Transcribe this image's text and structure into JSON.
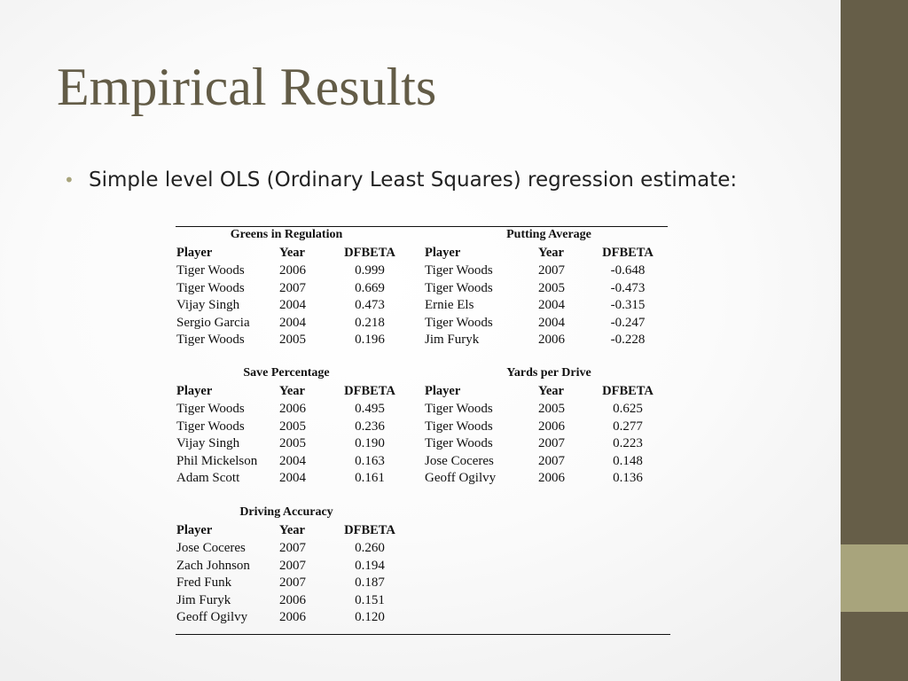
{
  "slide": {
    "title": "Empirical Results",
    "bullet": "Simple level OLS (Ordinary Least Squares) regression estimate:",
    "colors": {
      "title": "#635c47",
      "sidebar": "#665e48",
      "sidebar_accent": "#a8a47c"
    }
  },
  "tables": {
    "greens": {
      "title": "Greens in Regulation",
      "headers": [
        "Player",
        "Year",
        "DFBETA"
      ],
      "rows": [
        [
          "Tiger Woods",
          "2006",
          "0.999"
        ],
        [
          "Tiger Woods",
          "2007",
          "0.669"
        ],
        [
          "Vijay Singh",
          "2004",
          "0.473"
        ],
        [
          "Sergio Garcia",
          "2004",
          "0.218"
        ],
        [
          "Tiger Woods",
          "2005",
          "0.196"
        ]
      ]
    },
    "putting": {
      "title": "Putting Average",
      "headers": [
        "Player",
        "Year",
        "DFBETA"
      ],
      "rows": [
        [
          "Tiger Woods",
          "2007",
          "-0.648"
        ],
        [
          "Tiger Woods",
          "2005",
          "-0.473"
        ],
        [
          "Ernie Els",
          "2004",
          "-0.315"
        ],
        [
          "Tiger Woods",
          "2004",
          "-0.247"
        ],
        [
          "Jim Furyk",
          "2006",
          "-0.228"
        ]
      ]
    },
    "save": {
      "title": "Save Percentage",
      "headers": [
        "Player",
        "Year",
        "DFBETA"
      ],
      "rows": [
        [
          "Tiger Woods",
          "2006",
          "0.495"
        ],
        [
          "Tiger Woods",
          "2005",
          "0.236"
        ],
        [
          "Vijay Singh",
          "2005",
          "0.190"
        ],
        [
          "Phil Mickelson",
          "2004",
          "0.163"
        ],
        [
          "Adam Scott",
          "2004",
          "0.161"
        ]
      ]
    },
    "yards": {
      "title": "Yards per Drive",
      "headers": [
        "Player",
        "Year",
        "DFBETA"
      ],
      "rows": [
        [
          "Tiger Woods",
          "2005",
          "0.625"
        ],
        [
          "Tiger Woods",
          "2006",
          "0.277"
        ],
        [
          "Tiger Woods",
          "2007",
          "0.223"
        ],
        [
          "Jose Coceres",
          "2007",
          "0.148"
        ],
        [
          "Geoff Ogilvy",
          "2006",
          "0.136"
        ]
      ]
    },
    "driving": {
      "title": "Driving Accuracy",
      "headers": [
        "Player",
        "Year",
        "DFBETA"
      ],
      "rows": [
        [
          "Jose Coceres",
          "2007",
          "0.260"
        ],
        [
          "Zach Johnson",
          "2007",
          "0.194"
        ],
        [
          "Fred Funk",
          "2007",
          "0.187"
        ],
        [
          "Jim Furyk",
          "2006",
          "0.151"
        ],
        [
          "Geoff Ogilvy",
          "2006",
          "0.120"
        ]
      ]
    }
  }
}
